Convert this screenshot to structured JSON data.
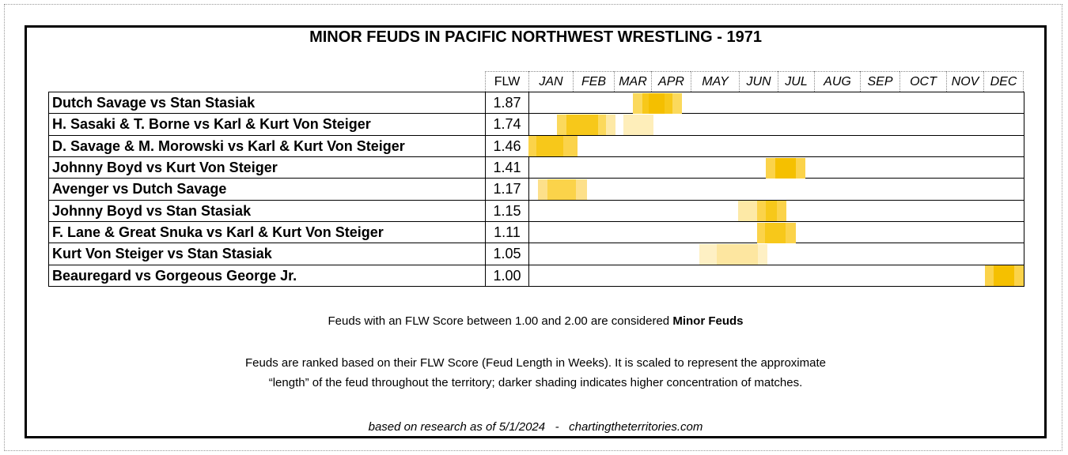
{
  "title": "MINOR FEUDS IN PACIFIC NORTHWEST WRESTLING - 1971",
  "table": {
    "header": {
      "score": "FLW",
      "months": [
        "JAN",
        "FEB",
        "MAR",
        "APR",
        "MAY",
        "JUN",
        "JUL",
        "AUG",
        "SEP",
        "OCT",
        "NOV",
        "DEC"
      ]
    },
    "rows": [
      [
        "Dutch Savage vs Stan Stasiak",
        "1.87"
      ],
      [
        "H. Sasaki & T. Borne vs Karl & Kurt Von Steiger",
        "1.74"
      ],
      [
        "D. Savage & M. Morowski vs Karl & Kurt Von Steiger",
        "1.46"
      ],
      [
        "Johnny Boyd vs Kurt Von Steiger",
        "1.41"
      ],
      [
        "Avenger vs Dutch Savage",
        "1.17"
      ],
      [
        "Johnny Boyd vs Stan Stasiak",
        "1.15"
      ],
      [
        "F. Lane & Great Snuka vs Karl & Kurt Von Steiger",
        "1.11"
      ],
      [
        "Kurt Von Steiger vs Stan Stasiak",
        "1.05"
      ],
      [
        "Beauregard vs Gorgeous George Jr.",
        "1.00"
      ]
    ]
  },
  "notes": {
    "minor_prefix": "Feuds with an FLW Score between 1.00 and 2.00 are considered",
    "minor_bold": "Minor Feuds",
    "ranking_line1": "Feuds are ranked based on their FLW Score (Feud Length in Weeks). It is scaled to represent the approximate",
    "ranking_line2": "“length” of the feud throughout the territory; darker shading indicates higher concentration of matches.",
    "credit": "based on research as of 5/1/2024   -   chartingtheterritories.com"
  }
}
